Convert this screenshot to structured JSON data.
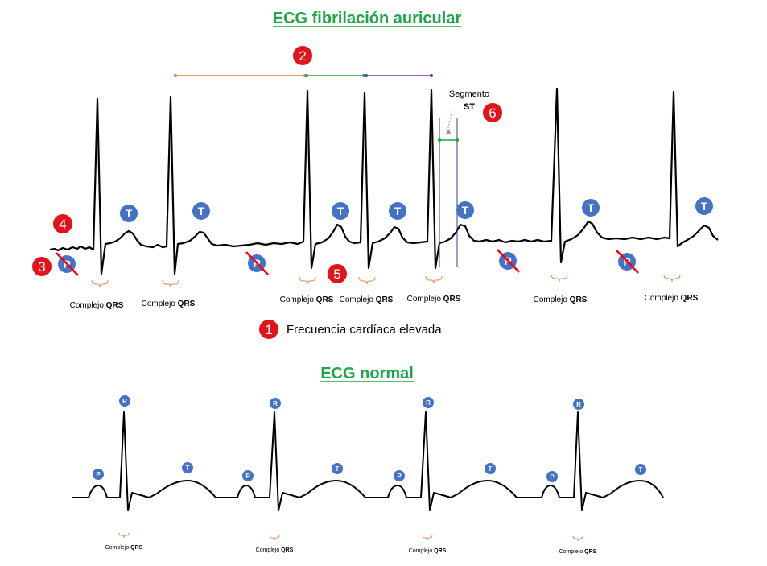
{
  "titles": {
    "top": "ECG fibrilación auricular",
    "bottom": "ECG normal"
  },
  "legend": {
    "number": "1",
    "text": "Frecuencia cardíaca elevada"
  },
  "labels": {
    "qrs_prefix": "Complejo ",
    "qrs_bold": "QRS",
    "t_wave": "T",
    "p_wave": "P",
    "r_wave": "R",
    "segment_line1": "Segmento",
    "segment_line2": "ST"
  },
  "markers": [
    "1",
    "2",
    "3",
    "4",
    "5",
    "6"
  ],
  "colors": {
    "title": "#1fa64a",
    "marker_red": "#e0141a",
    "wave_blue": "#4472c4",
    "bracket_orange": "#e8884a",
    "interval_orange": "#e07b39",
    "interval_green": "#1fa64a",
    "interval_purple": "#7030a0",
    "st_line": "#2f3f8f",
    "strike": "#ff0000"
  },
  "icons": {
    "p_wave_absent": "crossed-p-icon",
    "marker": "red-number-circle-icon"
  }
}
